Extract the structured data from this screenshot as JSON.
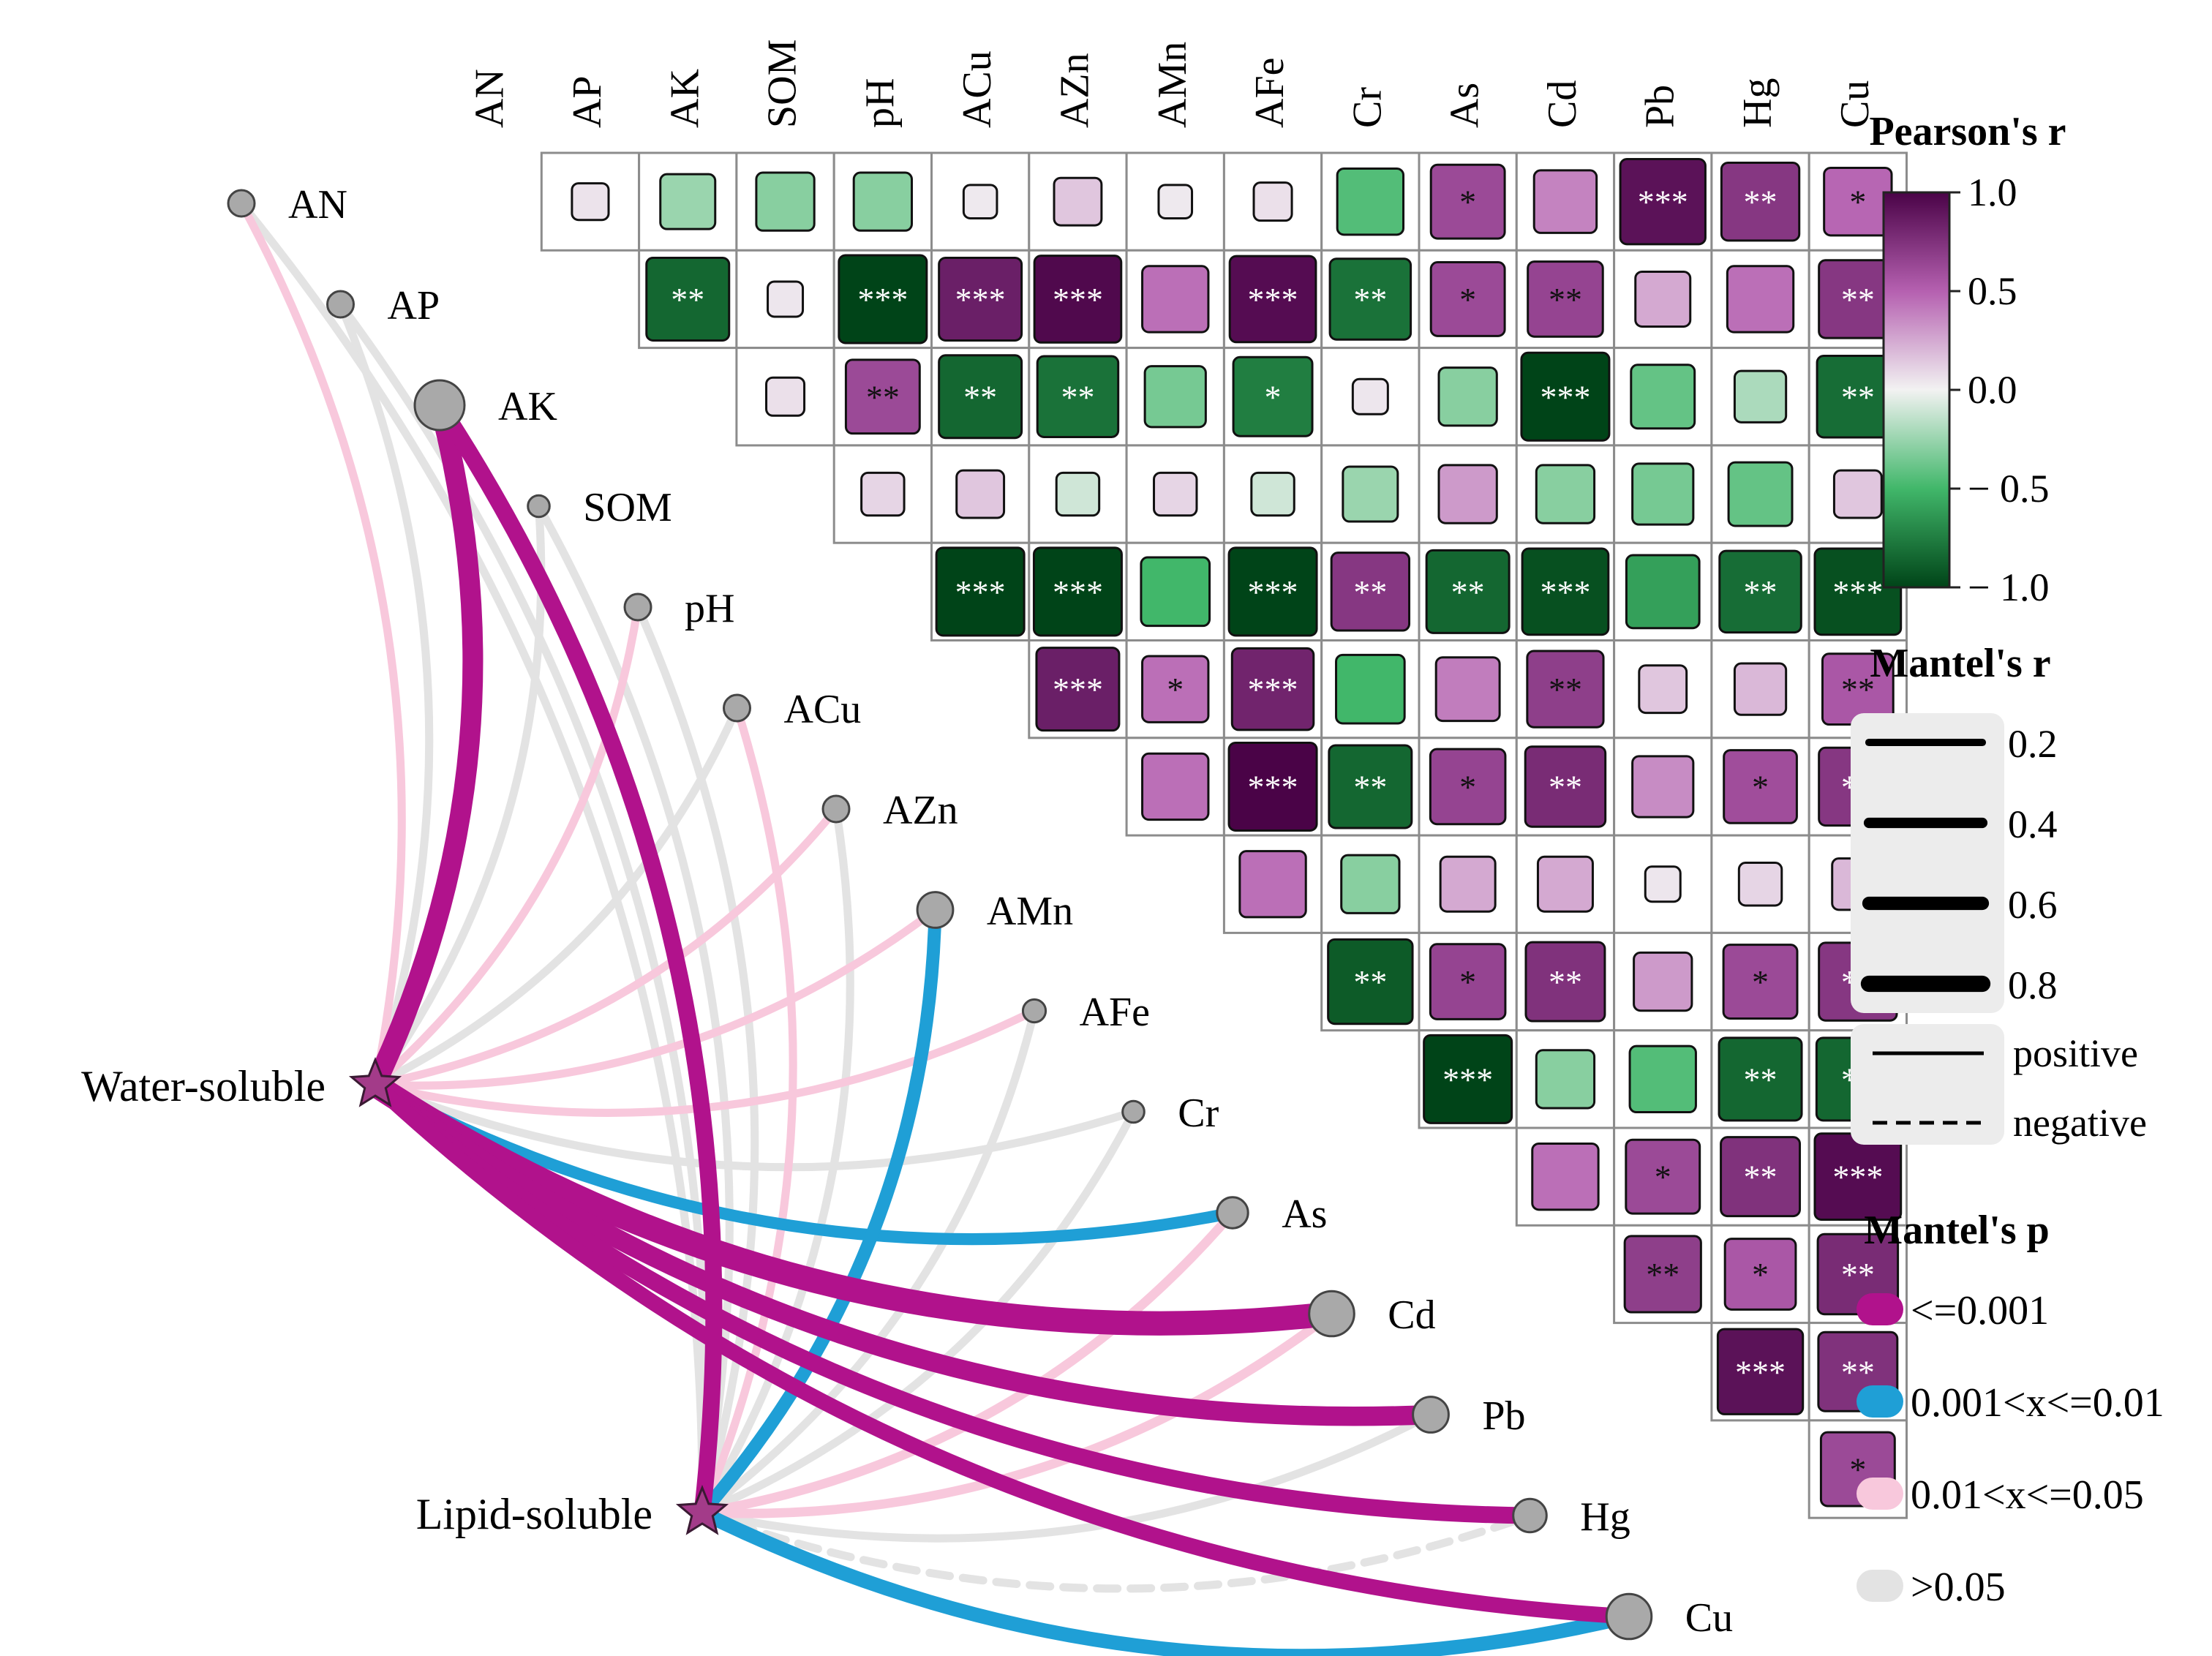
{
  "chart_data": {
    "type": "heatmap",
    "variables": [
      "AN",
      "AP",
      "AK",
      "SOM",
      "pH",
      "ACu",
      "AZn",
      "AMn",
      "AFe",
      "Cr",
      "As",
      "Cd",
      "Pb",
      "Hg",
      "Cu"
    ],
    "pearson_rows": [
      {
        "row": "AN",
        "r": [
          0.05,
          -0.25,
          -0.3,
          -0.3,
          0.03,
          0.15,
          0.03,
          0.06,
          -0.45,
          0.62,
          0.38,
          0.92,
          0.72,
          0.48
        ],
        "sig": [
          "",
          "",
          "",
          "",
          "",
          "",
          "",
          "",
          "",
          "*",
          "",
          "***",
          "**",
          "*"
        ]
      },
      {
        "row": "AP",
        "r": [
          -0.85,
          0.04,
          -1.0,
          0.85,
          0.97,
          0.45,
          0.95,
          -0.8,
          0.62,
          0.65,
          0.25,
          0.45,
          0.72
        ],
        "sig": [
          "**",
          "",
          "***",
          "***",
          "***",
          "",
          "***",
          "**",
          "*",
          "**",
          "",
          "",
          "**"
        ]
      },
      {
        "row": "AK",
        "r": [
          0.06,
          0.62,
          -0.85,
          -0.8,
          -0.35,
          -0.75,
          0.04,
          -0.3,
          -1.0,
          -0.4,
          -0.2,
          -0.82
        ],
        "sig": [
          "",
          "**",
          "**",
          "**",
          "",
          "*",
          "",
          "",
          "***",
          "",
          "",
          "**"
        ]
      },
      {
        "row": "SOM",
        "r": [
          0.1,
          0.15,
          -0.1,
          0.1,
          -0.1,
          -0.25,
          0.3,
          -0.3,
          -0.35,
          -0.4,
          0.15
        ],
        "sig": [
          "",
          "",
          "",
          "",
          "",
          "",
          "",
          "",
          "",
          "",
          ""
        ]
      },
      {
        "row": "pH",
        "r": [
          -1.0,
          -1.0,
          -0.5,
          -1.0,
          0.72,
          -0.85,
          -0.95,
          -0.6,
          -0.82,
          -0.95
        ],
        "sig": [
          "***",
          "***",
          "",
          "***",
          "**",
          "**",
          "***",
          "",
          "**",
          "***"
        ]
      },
      {
        "row": "ACu",
        "r": [
          0.85,
          0.45,
          0.82,
          -0.5,
          0.4,
          0.68,
          0.15,
          0.2,
          0.55
        ],
        "sig": [
          "***",
          "*",
          "***",
          "",
          "",
          "**",
          "",
          "",
          "**"
        ]
      },
      {
        "row": "AZn",
        "r": [
          0.45,
          1.0,
          -0.85,
          0.65,
          0.78,
          0.35,
          0.6,
          0.72
        ],
        "sig": [
          "",
          "***",
          "**",
          "*",
          "**",
          "",
          "*",
          "**"
        ]
      },
      {
        "row": "AMn",
        "r": [
          0.45,
          -0.3,
          0.25,
          0.25,
          0.04,
          0.1,
          0.2
        ],
        "sig": [
          "",
          "",
          "",
          "",
          "",
          "",
          ""
        ]
      },
      {
        "row": "AFe",
        "r": [
          -0.9,
          0.65,
          0.75,
          0.3,
          0.62,
          0.72
        ],
        "sig": [
          "**",
          "*",
          "**",
          "",
          "*",
          "**"
        ]
      },
      {
        "row": "Cr",
        "r": [
          -1.0,
          -0.3,
          -0.45,
          -0.85,
          -0.85
        ],
        "sig": [
          "***",
          "",
          "",
          "**",
          "**"
        ]
      },
      {
        "row": "As",
        "r": [
          0.45,
          0.62,
          0.75,
          0.95
        ],
        "sig": [
          "",
          "*",
          "**",
          "***"
        ]
      },
      {
        "row": "Cd",
        "r": [
          0.68,
          0.55,
          0.78
        ],
        "sig": [
          "**",
          "*",
          "**"
        ]
      },
      {
        "row": "Pb",
        "r": [
          0.92,
          0.75
        ],
        "sig": [
          "***",
          "**"
        ]
      },
      {
        "row": "Hg",
        "r": [
          0.62
        ],
        "sig": [
          "*"
        ]
      }
    ],
    "mantel_links": [
      {
        "from": "Water-soluble",
        "to": "AN",
        "r": 0.15,
        "p": "0.01<x<=0.05",
        "sign": "positive"
      },
      {
        "from": "Water-soluble",
        "to": "AP",
        "r": 0.15,
        "p": ">0.05",
        "sign": "positive"
      },
      {
        "from": "Water-soluble",
        "to": "AK",
        "r": 0.65,
        "p": "<=0.001",
        "sign": "positive"
      },
      {
        "from": "Water-soluble",
        "to": "SOM",
        "r": 0.15,
        "p": ">0.05",
        "sign": "positive"
      },
      {
        "from": "Water-soluble",
        "to": "pH",
        "r": 0.15,
        "p": "0.01<x<=0.05",
        "sign": "positive"
      },
      {
        "from": "Water-soluble",
        "to": "ACu",
        "r": 0.15,
        "p": ">0.05",
        "sign": "positive"
      },
      {
        "from": "Water-soluble",
        "to": "AZn",
        "r": 0.15,
        "p": "0.01<x<=0.05",
        "sign": "positive"
      },
      {
        "from": "Water-soluble",
        "to": "AMn",
        "r": 0.15,
        "p": "0.01<x<=0.05",
        "sign": "positive"
      },
      {
        "from": "Water-soluble",
        "to": "AFe",
        "r": 0.15,
        "p": "0.01<x<=0.05",
        "sign": "positive"
      },
      {
        "from": "Water-soluble",
        "to": "Cr",
        "r": 0.15,
        "p": ">0.05",
        "sign": "positive"
      },
      {
        "from": "Water-soluble",
        "to": "As",
        "r": 0.3,
        "p": "0.001<x<=0.01",
        "sign": "positive"
      },
      {
        "from": "Water-soluble",
        "to": "Cd",
        "r": 0.8,
        "p": "<=0.001",
        "sign": "positive"
      },
      {
        "from": "Water-soluble",
        "to": "Pb",
        "r": 0.6,
        "p": "<=0.001",
        "sign": "positive"
      },
      {
        "from": "Water-soluble",
        "to": "Hg",
        "r": 0.5,
        "p": "<=0.001",
        "sign": "positive"
      },
      {
        "from": "Water-soluble",
        "to": "Cu",
        "r": 0.45,
        "p": "<=0.001",
        "sign": "positive"
      },
      {
        "from": "Lipid-soluble",
        "to": "AN",
        "r": 0.15,
        "p": ">0.05",
        "sign": "positive"
      },
      {
        "from": "Lipid-soluble",
        "to": "AP",
        "r": 0.15,
        "p": ">0.05",
        "sign": "positive"
      },
      {
        "from": "Lipid-soluble",
        "to": "AK",
        "r": 0.5,
        "p": "<=0.001",
        "sign": "positive"
      },
      {
        "from": "Lipid-soluble",
        "to": "SOM",
        "r": 0.15,
        "p": ">0.05",
        "sign": "positive"
      },
      {
        "from": "Lipid-soluble",
        "to": "pH",
        "r": 0.15,
        "p": ">0.05",
        "sign": "positive"
      },
      {
        "from": "Lipid-soluble",
        "to": "ACu",
        "r": 0.15,
        "p": "0.01<x<=0.05",
        "sign": "positive"
      },
      {
        "from": "Lipid-soluble",
        "to": "AZn",
        "r": 0.15,
        "p": ">0.05",
        "sign": "positive"
      },
      {
        "from": "Lipid-soluble",
        "to": "AMn",
        "r": 0.35,
        "p": "0.001<x<=0.01",
        "sign": "positive"
      },
      {
        "from": "Lipid-soluble",
        "to": "AFe",
        "r": 0.15,
        "p": ">0.05",
        "sign": "positive"
      },
      {
        "from": "Lipid-soluble",
        "to": "Cr",
        "r": 0.15,
        "p": ">0.05",
        "sign": "positive"
      },
      {
        "from": "Lipid-soluble",
        "to": "As",
        "r": 0.2,
        "p": "0.01<x<=0.05",
        "sign": "positive"
      },
      {
        "from": "Lipid-soluble",
        "to": "Cd",
        "r": 0.2,
        "p": "0.01<x<=0.05",
        "sign": "positive"
      },
      {
        "from": "Lipid-soluble",
        "to": "Pb",
        "r": 0.15,
        "p": ">0.05",
        "sign": "positive"
      },
      {
        "from": "Lipid-soluble",
        "to": "Hg",
        "r": 0.15,
        "p": ">0.05",
        "sign": "negative"
      },
      {
        "from": "Lipid-soluble",
        "to": "Cu",
        "r": 0.4,
        "p": "0.001<x<=0.01",
        "sign": "positive"
      }
    ],
    "node_size_values": {
      "AN": 1,
      "AP": 1,
      "AK": 3,
      "SOM": 0.6,
      "pH": 1,
      "ACu": 1,
      "AZn": 1,
      "AMn": 1.8,
      "AFe": 0.7,
      "Cr": 0.6,
      "As": 1.4,
      "Cd": 2.6,
      "Pb": 1.8,
      "Hg": 1.6,
      "Cu": 2.6
    },
    "sources": [
      {
        "name": "Water-soluble",
        "label": "Water-soluble"
      },
      {
        "name": "Lipid-soluble",
        "label": "Lipid-soluble"
      }
    ],
    "colorbar": {
      "title": "Pearson's r",
      "range": [
        -1.0,
        1.0
      ],
      "ticks": [
        "1.0",
        "0.5",
        "0.0",
        "− 0.5",
        "− 1.0"
      ],
      "tick_values": [
        1.0,
        0.5,
        0.0,
        -0.5,
        -1.0
      ]
    },
    "legend_mantel_r": {
      "title": "Mantel's r",
      "items": [
        {
          "label": "0.2",
          "r": 0.2
        },
        {
          "label": "0.4",
          "r": 0.4
        },
        {
          "label": "0.6",
          "r": 0.6
        },
        {
          "label": "0.8",
          "r": 0.8
        }
      ],
      "line_types": [
        {
          "label": "positive",
          "style": "solid"
        },
        {
          "label": "negative",
          "style": "dashed"
        }
      ]
    },
    "legend_mantel_p": {
      "title": "Mantel's p",
      "items": [
        {
          "label": "<=0.001",
          "color": "#b1128c"
        },
        {
          "label": "0.001<x<=0.01",
          "color": "#1f9fd6"
        },
        {
          "label": "0.01<x<=0.05",
          "color": "#f8c8dc"
        },
        {
          "label": ">0.05",
          "color": "#e3e3e3"
        }
      ]
    }
  }
}
